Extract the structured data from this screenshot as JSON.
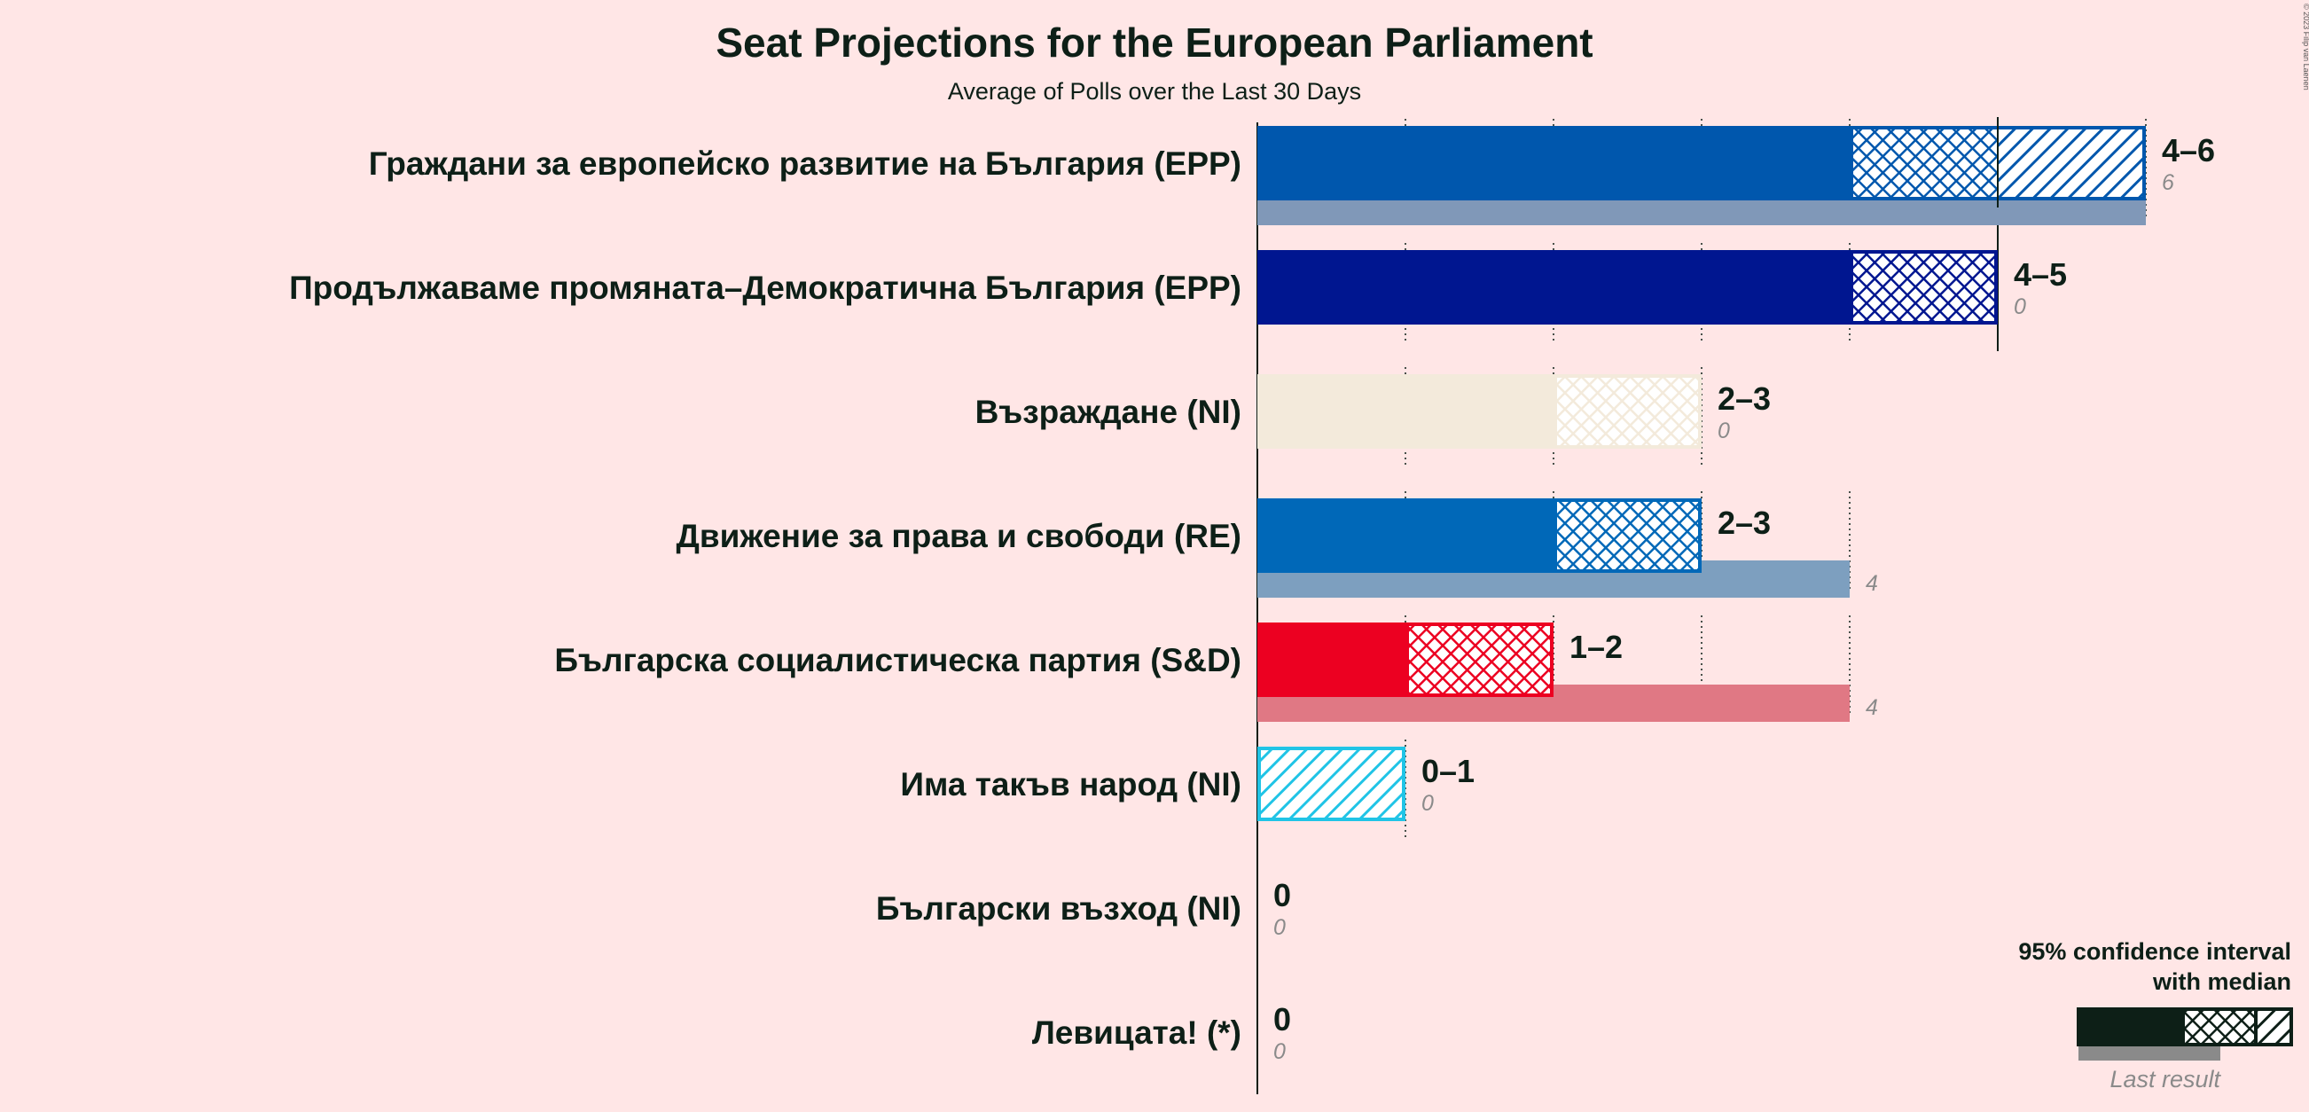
{
  "title": "Seat Projections for the European Parliament",
  "subtitle": "Average of Polls over the Last 30 Days",
  "copyright": "© 2023 Filip van Laenen",
  "legend": {
    "line1": "95% confidence interval",
    "line2": "with median",
    "last_result": "Last result",
    "color": "#0d1f17"
  },
  "chart_data": {
    "type": "bar",
    "orientation": "horizontal",
    "title": "Seat Projections for the European Parliament",
    "subtitle": "Average of Polls over the Last 30 Days",
    "xlim": [
      0,
      6
    ],
    "grid": "dotted vertical lines at each seat",
    "legend_position": "bottom-right",
    "categories": [
      "Граждани за европейско развитие на България (EPP)",
      "Продължаваме промяната–Демократична България (EPP)",
      "Възраждане (NI)",
      "Движение за права и свободи (RE)",
      "Българска социалистическа партия (S&D)",
      "Има такъв народ (NI)",
      "Български възход (NI)",
      "Левицата! (*)"
    ],
    "series": [
      {
        "name": "Lower bound (95%)",
        "values": [
          4,
          4,
          2,
          2,
          1,
          0,
          0,
          0
        ]
      },
      {
        "name": "Median",
        "values": [
          5,
          5,
          3,
          3,
          2,
          0,
          0,
          0
        ]
      },
      {
        "name": "Upper bound (95%)",
        "values": [
          6,
          5,
          3,
          3,
          2,
          1,
          0,
          0
        ]
      },
      {
        "name": "Last result",
        "values": [
          6,
          0,
          0,
          4,
          4,
          0,
          0,
          0
        ]
      }
    ],
    "range_labels": [
      "4–6",
      "4–5",
      "2–3",
      "2–3",
      "1–2",
      "0–1",
      "0",
      "0"
    ],
    "last_result_labels": [
      "6",
      "0",
      "0",
      "4",
      "4",
      "0",
      "0",
      "0"
    ],
    "colors": [
      "#0057ad",
      "#001690",
      "#f3eadb",
      "#0068b8",
      "#ec0021",
      "#20c4e6",
      "#cccccc",
      "#aaaaaa"
    ],
    "last_result_colors": [
      "#8098b8",
      "#8086be",
      "#f6efe7",
      "#7d9fbf",
      "#e07884",
      "#90dcef",
      "#cccccc",
      "#bbbbbb"
    ]
  }
}
